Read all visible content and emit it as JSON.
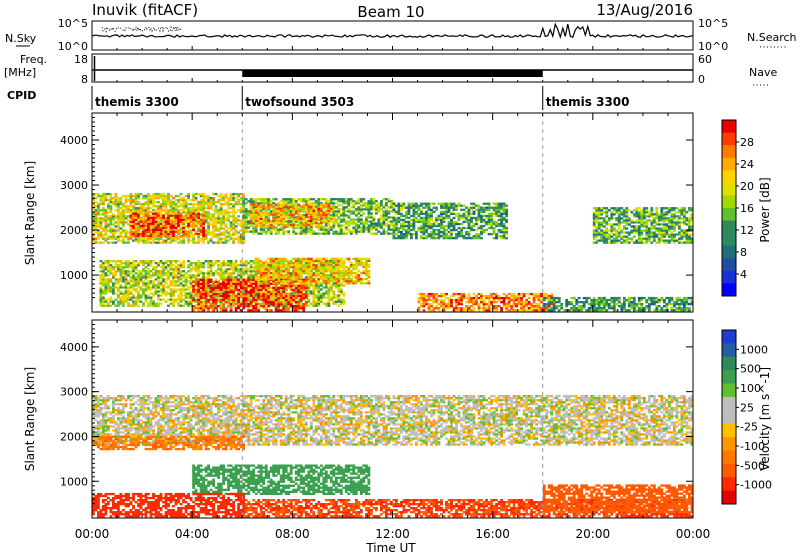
{
  "header": {
    "station": "Inuvik (fitACF)",
    "beam": "Beam 10",
    "date": "13/Aug/2016"
  },
  "noise_panel": {
    "left_label": "N.Sky",
    "right_label": "N.Search",
    "left_ticks": [
      "10^5",
      "10^0"
    ],
    "right_ticks": [
      "10^5",
      "10^0"
    ]
  },
  "freq_panel": {
    "label_line1": "Freq.",
    "label_line2": "[MHz]",
    "left_ticks": [
      "18",
      "8"
    ],
    "right_ticks": [
      "60",
      "0"
    ],
    "right_label": "Nave"
  },
  "cpid": {
    "label": "CPID",
    "segments": [
      {
        "name": "themis 3300",
        "start_hour": 0,
        "end_hour": 6
      },
      {
        "name": "twofsound 3503",
        "start_hour": 6,
        "end_hour": 18
      },
      {
        "name": "themis 3300",
        "start_hour": 18,
        "end_hour": 24
      }
    ]
  },
  "power_colorbar": {
    "label": "Power [dB]",
    "ticks": [
      "28",
      "24",
      "20",
      "16",
      "12",
      "8",
      "4"
    ],
    "colors": [
      "#e60000",
      "#ff3c00",
      "#ff7800",
      "#ffaa00",
      "#ffd200",
      "#e0e000",
      "#a0d800",
      "#60c030",
      "#2e8b57",
      "#2a8a60",
      "#1f6e78",
      "#1e4ea0",
      "#1432d8",
      "#0000ff"
    ]
  },
  "velocity_colorbar": {
    "label": "Velocity [m s^-1]",
    "ticks": [
      "1000",
      "500",
      "100",
      "25",
      "-25",
      "-100",
      "-500",
      "-1000"
    ],
    "colors": [
      "#1e3cd2",
      "#2060a0",
      "#2e8b57",
      "#3aa050",
      "#60c030",
      "#bebebe",
      "#bebebe",
      "#ffc000",
      "#ff9600",
      "#ff7800",
      "#ff5a00",
      "#ff2800",
      "#e60000"
    ]
  },
  "y_axis_label": "Slant Range [km]",
  "y_ticks": [
    "1000",
    "2000",
    "3000",
    "4000"
  ],
  "x_axis_label": "Time UT",
  "x_ticks": [
    "00:00",
    "04:00",
    "08:00",
    "12:00",
    "16:00",
    "20:00",
    "00:00"
  ],
  "chart_data": [
    {
      "type": "heatmap",
      "title": "Power",
      "x_range_hours": [
        0,
        24
      ],
      "y_range_km": [
        180,
        4600
      ],
      "colorbar_range_db": [
        0,
        30
      ],
      "regions": [
        {
          "t0": 0.0,
          "t1": 6.0,
          "r0": 1700,
          "r1": 2800,
          "db": 18
        },
        {
          "t0": 1.5,
          "t1": 4.5,
          "r0": 1850,
          "r1": 2350,
          "db": 26
        },
        {
          "t0": 6.0,
          "t1": 12.0,
          "r0": 1900,
          "r1": 2700,
          "db": 14
        },
        {
          "t0": 6.3,
          "t1": 9.5,
          "r0": 2050,
          "r1": 2550,
          "db": 22
        },
        {
          "t0": 12.0,
          "t1": 16.5,
          "r0": 1800,
          "r1": 2600,
          "db": 12
        },
        {
          "t0": 0.3,
          "t1": 10.0,
          "r0": 300,
          "r1": 1300,
          "db": 17
        },
        {
          "t0": 4.0,
          "t1": 8.5,
          "r0": 200,
          "r1": 900,
          "db": 27
        },
        {
          "t0": 6.5,
          "t1": 11.0,
          "r0": 800,
          "r1": 1350,
          "db": 21
        },
        {
          "t0": 13.0,
          "t1": 18.5,
          "r0": 200,
          "r1": 600,
          "db": 24
        },
        {
          "t0": 20.0,
          "t1": 24.0,
          "r0": 1700,
          "r1": 2500,
          "db": 13
        },
        {
          "t0": 18.0,
          "t1": 24.0,
          "r0": 200,
          "r1": 500,
          "db": 11
        }
      ]
    },
    {
      "type": "heatmap",
      "title": "Velocity",
      "x_range_hours": [
        0,
        24
      ],
      "y_range_km": [
        180,
        4600
      ],
      "colorbar_range_ms": [
        -1000,
        1000
      ],
      "regions": [
        {
          "t0": 0.0,
          "t1": 24.0,
          "r0": 1800,
          "r1": 2900,
          "v": 0
        },
        {
          "t0": 0.0,
          "t1": 6.0,
          "r0": 1700,
          "r1": 2000,
          "v": -150
        },
        {
          "t0": 4.0,
          "t1": 11.0,
          "r0": 700,
          "r1": 1350,
          "v": 200
        },
        {
          "t0": 0.0,
          "t1": 6.0,
          "r0": 200,
          "r1": 700,
          "v": -600
        },
        {
          "t0": 6.0,
          "t1": 24.0,
          "r0": 200,
          "r1": 600,
          "v": -400
        },
        {
          "t0": 18.0,
          "t1": 24.0,
          "r0": 300,
          "r1": 900,
          "v": -300
        }
      ]
    }
  ],
  "colors": {
    "axis": "#000000",
    "grid_dash": "#999999"
  }
}
